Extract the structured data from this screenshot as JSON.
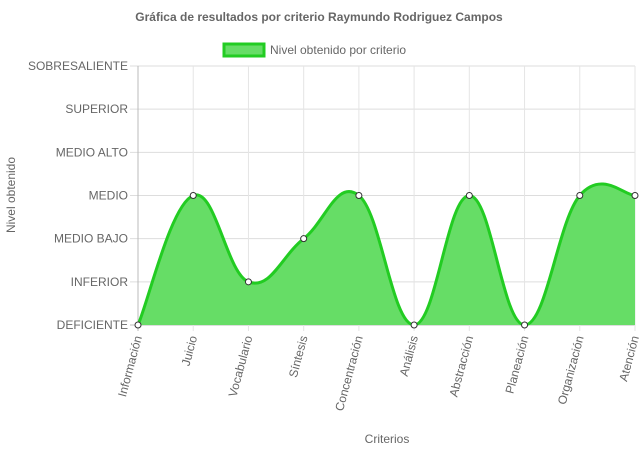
{
  "chart_data": {
    "type": "area",
    "title": "Gráfica de resultados por criterio Raymundo Rodriguez Campos",
    "xlabel": "Criterios",
    "ylabel": "Nivel obtenido",
    "levels": [
      "DEFICIENTE",
      "INFERIOR",
      "MEDIO BAJO",
      "MEDIO",
      "MEDIO ALTO",
      "SUPERIOR",
      "SOBRESALIENTE"
    ],
    "ylim": [
      0,
      6
    ],
    "categories": [
      "Información",
      "Juicio",
      "Vocabulario",
      "Síntesis",
      "Concentración",
      "Análisis",
      "Abstracción",
      "Planeación",
      "Organización",
      "Atención"
    ],
    "series": [
      {
        "name": "Nivel obtenido por criterio",
        "values": [
          0,
          3,
          1,
          2,
          3,
          0,
          3,
          0,
          3,
          3
        ],
        "color": "#22cc22",
        "fill": "#66dd66"
      }
    ],
    "grid": true,
    "legend": "top"
  }
}
